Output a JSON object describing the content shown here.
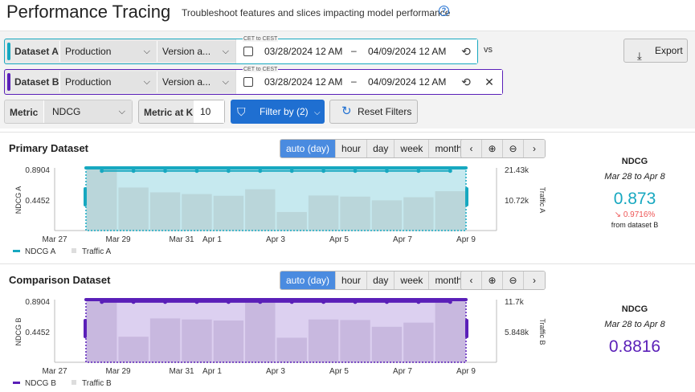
{
  "header": {
    "title": "Performance Tracing",
    "subtitle": "Troubleshoot features and slices impacting model performance"
  },
  "dataset_a": {
    "label": "Dataset A",
    "environment": "Production",
    "version": "Version a...",
    "tz_note": "CET to CEST",
    "start": "03/28/2024 12 AM",
    "end": "04/09/2024 12 AM",
    "accent": "#17a8c0"
  },
  "vs_label": "vs",
  "dataset_b": {
    "label": "Dataset B",
    "environment": "Production",
    "version": "Version a...",
    "tz_note": "CET to CEST",
    "start": "03/28/2024 12 AM",
    "end": "04/09/2024 12 AM",
    "accent": "#5a1fb8"
  },
  "export_label": "Export",
  "metric": {
    "label": "Metric",
    "value": "NDCG"
  },
  "metric_at_k": {
    "label": "Metric at K",
    "value": "10"
  },
  "filter_label": "Filter by (2)",
  "reset_label": "Reset Filters",
  "granularity": [
    "auto (day)",
    "hour",
    "day",
    "week",
    "month"
  ],
  "primary": {
    "title": "Primary Dataset",
    "summary": {
      "metric": "NDCG",
      "range": "Mar 28 to Apr 8",
      "value": "0.873",
      "delta": "0.9716%",
      "from": "from dataset B"
    }
  },
  "comparison": {
    "title": "Comparison Dataset",
    "summary": {
      "metric": "NDCG",
      "range": "Mar 28 to Apr 8",
      "value": "0.8816"
    }
  },
  "chart_data": [
    {
      "type": "line",
      "title": "Primary Dataset",
      "x": [
        "Mar 28",
        "Mar 29",
        "Mar 30",
        "Mar 31",
        "Apr 1",
        "Apr 2",
        "Apr 3",
        "Apr 4",
        "Apr 5",
        "Apr 6",
        "Apr 7",
        "Apr 8"
      ],
      "x_ticks": [
        "Mar 27",
        "Mar 29",
        "Mar 31",
        "Apr 1",
        "Apr 3",
        "Apr 5",
        "Apr 7",
        "Apr 9"
      ],
      "ylabel": "NDCG A",
      "y2label": "Traffic A",
      "y_ticks": [
        "0.8904",
        "0.4452"
      ],
      "y2_ticks": [
        "21.43k",
        "10.72k"
      ],
      "series": [
        {
          "name": "NDCG A",
          "values": [
            0.87,
            0.87,
            0.87,
            0.87,
            0.87,
            0.87,
            0.87,
            0.87,
            0.87,
            0.87,
            0.87,
            0.87
          ],
          "color": "#17a8c0"
        },
        {
          "name": "Traffic A",
          "values": [
            21500,
            15100,
            13400,
            12800,
            12200,
            14500,
            6500,
            12300,
            11900,
            10600,
            11700,
            13800
          ],
          "color": "#cfd8da"
        }
      ],
      "ylim": [
        0,
        0.8904
      ],
      "y2lim": [
        0,
        21430
      ]
    },
    {
      "type": "line",
      "title": "Comparison Dataset",
      "x": [
        "Mar 28",
        "Mar 29",
        "Mar 30",
        "Mar 31",
        "Apr 1",
        "Apr 2",
        "Apr 3",
        "Apr 4",
        "Apr 5",
        "Apr 6",
        "Apr 7",
        "Apr 8"
      ],
      "x_ticks": [
        "Mar 27",
        "Mar 29",
        "Mar 31",
        "Apr 1",
        "Apr 3",
        "Apr 5",
        "Apr 7",
        "Apr 9"
      ],
      "ylabel": "NDCG B",
      "y2label": "Traffic B",
      "y_ticks": [
        "0.8904",
        "0.4452"
      ],
      "y2_ticks": [
        "11.7k",
        "5.848k"
      ],
      "series": [
        {
          "name": "NDCG B",
          "values": [
            0.88,
            0.88,
            0.88,
            0.88,
            0.88,
            0.88,
            0.88,
            0.88,
            0.88,
            0.88,
            0.88,
            0.88
          ],
          "color": "#5a1fb8"
        },
        {
          "name": "Traffic B",
          "values": [
            11700,
            4900,
            8400,
            8200,
            8000,
            11700,
            4700,
            8200,
            8100,
            6800,
            7600,
            11700
          ],
          "color": "#c9b9e6"
        }
      ],
      "ylim": [
        0,
        0.8904
      ],
      "y2lim": [
        0,
        11700
      ]
    }
  ]
}
